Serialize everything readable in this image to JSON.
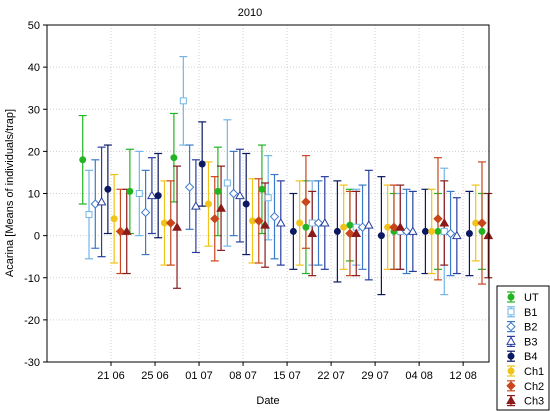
{
  "chart_data": {
    "type": "scatter",
    "title": "2010",
    "xlabel": "Date",
    "ylabel": "Acarina [Means of individuals/trap]",
    "ylim": [
      -30,
      50
    ],
    "yticks": [
      "-30",
      "-20",
      "-10",
      "0",
      "10",
      "20",
      "30",
      "40",
      "50"
    ],
    "xlim": [
      0,
      66
    ],
    "xticks": [
      {
        "x": 7,
        "label": "21 06"
      },
      {
        "x": 14,
        "label": "25 06"
      },
      {
        "x": 21,
        "label": "01 07"
      },
      {
        "x": 28,
        "label": "08 07"
      },
      {
        "x": 35,
        "label": "15 07"
      },
      {
        "x": 42,
        "label": "22 07"
      },
      {
        "x": 49,
        "label": "29 07"
      },
      {
        "x": 56,
        "label": "04 08"
      },
      {
        "x": 63,
        "label": "12 08"
      }
    ],
    "grid": true,
    "legend_position": "right",
    "error_bars": "vertical",
    "series": [
      {
        "name": "UT",
        "color": "#22b522",
        "marker": "circle-filled",
        "points": [
          [
            2.5,
            18,
            10.5
          ],
          [
            10,
            10.5,
            10
          ],
          [
            17,
            18.5,
            10.5
          ],
          [
            24,
            10.5,
            10.5
          ],
          [
            31,
            11,
            10.5
          ],
          [
            38,
            2,
            11
          ],
          [
            45,
            2.5,
            8.5
          ],
          [
            52,
            1,
            9
          ],
          [
            59,
            1,
            9
          ],
          [
            66,
            1,
            9
          ]
        ]
      },
      {
        "name": "B1",
        "color": "#73b6e6",
        "marker": "square-open",
        "points": [
          [
            3.5,
            5,
            10.5
          ],
          [
            11.5,
            10,
            10
          ],
          [
            18.5,
            32,
            10.5
          ],
          [
            25.5,
            12.5,
            15
          ],
          [
            32,
            9,
            10
          ],
          [
            39,
            3,
            10
          ],
          [
            46,
            2,
            9
          ],
          [
            53,
            1,
            9
          ],
          [
            60,
            1,
            15
          ]
        ]
      },
      {
        "name": "B2",
        "color": "#3b7ac9",
        "marker": "diamond-open",
        "points": [
          [
            4.5,
            7.5,
            10.5
          ],
          [
            12.5,
            5.5,
            10
          ],
          [
            19.5,
            11.5,
            10
          ],
          [
            26.5,
            10,
            10
          ],
          [
            33,
            4.5,
            10
          ],
          [
            40,
            3,
            10
          ],
          [
            47,
            2,
            10
          ],
          [
            54,
            1,
            10
          ],
          [
            61,
            0.5,
            10
          ]
        ]
      },
      {
        "name": "B3",
        "color": "#283e9e",
        "marker": "triangle-open",
        "points": [
          [
            5.5,
            8,
            13
          ],
          [
            13.5,
            9.5,
            9
          ],
          [
            20.5,
            7,
            11
          ],
          [
            27.5,
            9.5,
            11
          ],
          [
            34,
            3,
            10
          ],
          [
            41,
            3,
            11
          ],
          [
            48,
            2.5,
            13
          ],
          [
            55,
            1,
            9.5
          ],
          [
            62,
            0,
            9
          ]
        ]
      },
      {
        "name": "B4",
        "color": "#0c1960",
        "marker": "circle-filled",
        "points": [
          [
            6.5,
            11,
            10.5
          ],
          [
            14.5,
            9.5,
            10
          ],
          [
            21.5,
            17,
            10
          ],
          [
            28.5,
            7.5,
            12
          ],
          [
            36,
            1,
            9
          ],
          [
            43,
            1,
            12
          ],
          [
            50,
            0,
            14
          ],
          [
            57,
            1,
            10
          ],
          [
            64,
            0.5,
            10
          ]
        ]
      },
      {
        "name": "Ch1",
        "color": "#f0c419",
        "marker": "circle-filled",
        "points": [
          [
            7.5,
            4,
            10.5
          ],
          [
            15.5,
            3,
            10
          ],
          [
            22.5,
            7.5,
            10
          ],
          [
            29.5,
            3.5,
            10
          ],
          [
            37,
            3,
            10
          ],
          [
            44,
            2,
            10
          ],
          [
            51,
            2,
            10
          ],
          [
            58,
            1,
            10
          ],
          [
            65,
            3,
            9
          ]
        ]
      },
      {
        "name": "Ch2",
        "color": "#c9461d",
        "marker": "diamond-filled",
        "points": [
          [
            8.5,
            1,
            10
          ],
          [
            16.5,
            3,
            10
          ],
          [
            23.5,
            4,
            10
          ],
          [
            30.5,
            3.5,
            10
          ],
          [
            38,
            8,
            11
          ],
          [
            45,
            0.5,
            10
          ],
          [
            52,
            2,
            10
          ],
          [
            59,
            4,
            14.5
          ],
          [
            66,
            3,
            14.5
          ]
        ]
      },
      {
        "name": "Ch3",
        "color": "#8b1a1a",
        "marker": "triangle-filled",
        "points": [
          [
            9.5,
            1,
            10
          ],
          [
            17.5,
            2,
            14.5
          ],
          [
            24.5,
            6.5,
            10
          ],
          [
            31.5,
            2.5,
            10
          ],
          [
            39,
            0.5,
            10
          ],
          [
            46,
            0.5,
            10
          ],
          [
            53,
            2,
            10
          ],
          [
            60,
            3,
            10
          ],
          [
            67,
            0,
            10
          ]
        ]
      }
    ]
  }
}
